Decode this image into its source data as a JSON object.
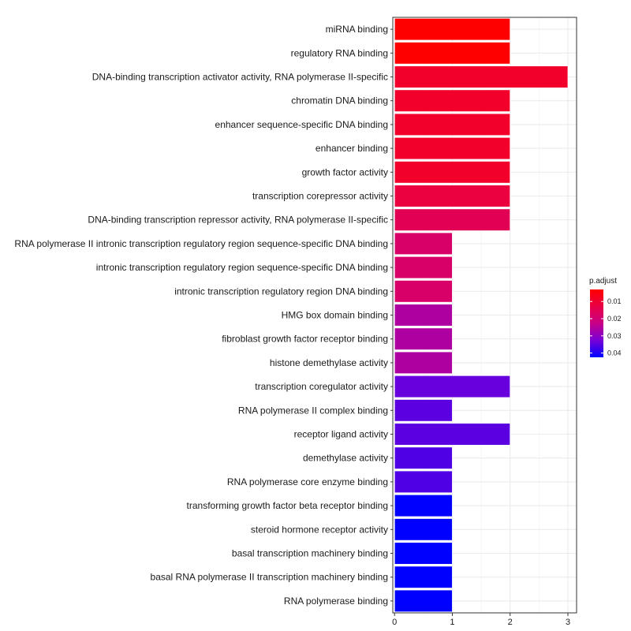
{
  "chart_data": {
    "type": "bar",
    "orientation": "horizontal",
    "categories": [
      "miRNA binding",
      "regulatory RNA binding",
      "DNA-binding transcription activator activity, RNA polymerase II-specific",
      "chromatin DNA binding",
      "enhancer sequence-specific DNA binding",
      "enhancer binding",
      "growth factor activity",
      "transcription corepressor activity",
      "DNA-binding transcription repressor activity, RNA polymerase II-specific",
      "RNA polymerase II intronic transcription regulatory region sequence-specific DNA binding",
      "intronic transcription regulatory region sequence-specific DNA binding",
      "intronic transcription regulatory region DNA binding",
      "HMG box domain binding",
      "fibroblast growth factor receptor binding",
      "histone demethylase activity",
      "transcription coregulator activity",
      "RNA polymerase II complex binding",
      "receptor ligand activity",
      "demethylase activity",
      "RNA polymerase core enzyme binding",
      "transforming growth factor beta receptor binding",
      "steroid hormone receptor activity",
      "basal transcription machinery binding",
      "basal RNA polymerase II transcription machinery binding",
      "RNA polymerase binding"
    ],
    "values": [
      2,
      2,
      3,
      2,
      2,
      2,
      2,
      2,
      2,
      1,
      1,
      1,
      1,
      1,
      1,
      2,
      1,
      2,
      1,
      1,
      1,
      1,
      1,
      1,
      1
    ],
    "p_adjust": [
      0.003,
      0.003,
      0.009,
      0.009,
      0.009,
      0.009,
      0.009,
      0.012,
      0.015,
      0.018,
      0.018,
      0.018,
      0.026,
      0.026,
      0.026,
      0.034,
      0.035,
      0.035,
      0.036,
      0.036,
      0.043,
      0.043,
      0.043,
      0.043,
      0.043
    ],
    "xlim": [
      -0.03,
      3.15
    ],
    "xticks": [
      0,
      1,
      2,
      3
    ],
    "xtick_labels": [
      "0",
      "1",
      "2",
      "3"
    ],
    "grid": true,
    "legend": {
      "title": "p.adjust",
      "placement": "right",
      "ticks": [
        0.01,
        0.02,
        0.03,
        0.04
      ],
      "tick_labels": [
        "0.01",
        "0.02",
        "0.03",
        "0.04"
      ],
      "range": [
        0.003,
        0.0425
      ],
      "color_low": "#FF0000",
      "color_high": "#0000FF"
    },
    "colors": {
      "panel_border": "#333333",
      "grid": "#ebebeb",
      "bar_outline": "#ffffff"
    }
  }
}
